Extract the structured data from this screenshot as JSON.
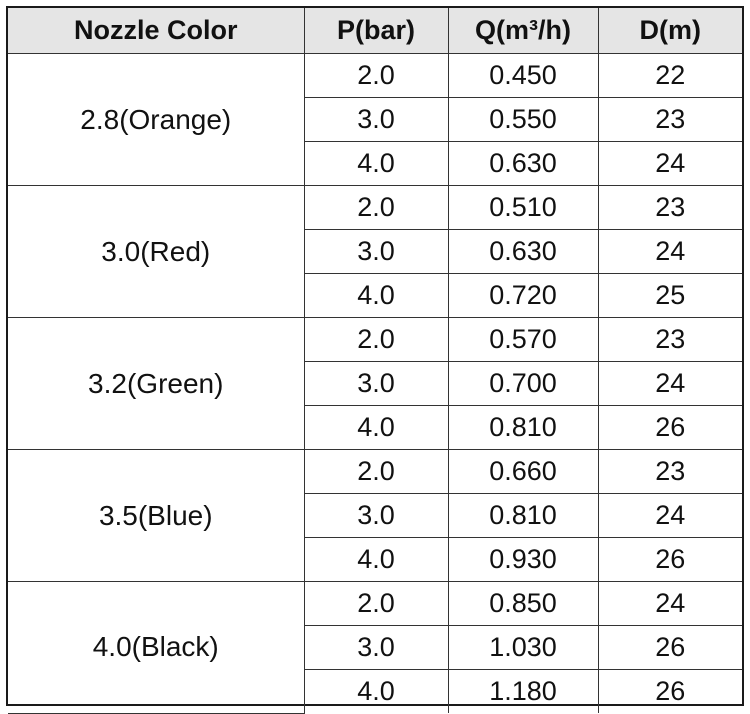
{
  "table": {
    "headers": [
      "Nozzle Color",
      "P(bar)",
      "Q(m³/h)",
      "D(m)"
    ],
    "groups": [
      {
        "nozzle": "2.8(Orange)",
        "rows": [
          {
            "p": "2.0",
            "q": "0.450",
            "d": "22"
          },
          {
            "p": "3.0",
            "q": "0.550",
            "d": "23"
          },
          {
            "p": "4.0",
            "q": "0.630",
            "d": "24"
          }
        ]
      },
      {
        "nozzle": "3.0(Red)",
        "rows": [
          {
            "p": "2.0",
            "q": "0.510",
            "d": "23"
          },
          {
            "p": "3.0",
            "q": "0.630",
            "d": "24"
          },
          {
            "p": "4.0",
            "q": "0.720",
            "d": "25"
          }
        ]
      },
      {
        "nozzle": "3.2(Green)",
        "rows": [
          {
            "p": "2.0",
            "q": "0.570",
            "d": "23"
          },
          {
            "p": "3.0",
            "q": "0.700",
            "d": "24"
          },
          {
            "p": "4.0",
            "q": "0.810",
            "d": "26"
          }
        ]
      },
      {
        "nozzle": "3.5(Blue)",
        "rows": [
          {
            "p": "2.0",
            "q": "0.660",
            "d": "23"
          },
          {
            "p": "3.0",
            "q": "0.810",
            "d": "24"
          },
          {
            "p": "4.0",
            "q": "0.930",
            "d": "26"
          }
        ]
      },
      {
        "nozzle": "4.0(Black)",
        "rows": [
          {
            "p": "2.0",
            "q": "0.850",
            "d": "24"
          },
          {
            "p": "3.0",
            "q": "1.030",
            "d": "26"
          },
          {
            "p": "4.0",
            "q": "1.180",
            "d": "26"
          }
        ]
      }
    ]
  },
  "colors": {
    "header_background": "#e5e5e5",
    "border": "#333333",
    "text": "#111111"
  }
}
